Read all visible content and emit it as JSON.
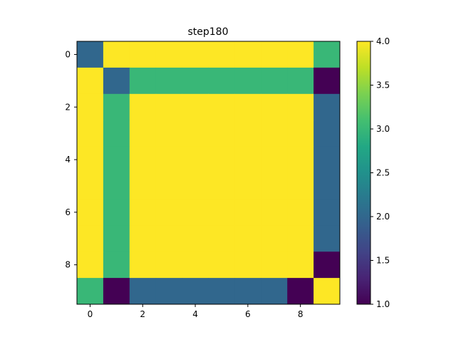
{
  "chart_data": {
    "type": "heatmap",
    "title": "step180",
    "xlabel": "",
    "ylabel": "",
    "x_ticks": [
      0,
      2,
      4,
      6,
      8
    ],
    "y_ticks": [
      0,
      2,
      4,
      6,
      8
    ],
    "colormap": "viridis",
    "colorbar": {
      "min": 1.0,
      "max": 4.0,
      "ticks": [
        "1.0",
        "1.5",
        "2.0",
        "2.5",
        "3.0",
        "3.5",
        "4.0"
      ]
    },
    "matrix": [
      [
        2,
        4,
        4,
        4,
        4,
        4,
        4,
        4,
        4,
        3
      ],
      [
        4,
        2,
        3,
        3,
        3,
        3,
        3,
        3,
        3,
        1
      ],
      [
        4,
        3,
        4,
        4,
        4,
        4,
        4,
        4,
        4,
        2
      ],
      [
        4,
        3,
        4,
        4,
        4,
        4,
        4,
        4,
        4,
        2
      ],
      [
        4,
        3,
        4,
        4,
        4,
        4,
        4,
        4,
        4,
        2
      ],
      [
        4,
        3,
        4,
        4,
        4,
        4,
        4,
        4,
        4,
        2
      ],
      [
        4,
        3,
        4,
        4,
        4,
        4,
        4,
        4,
        4,
        2
      ],
      [
        4,
        3,
        4,
        4,
        4,
        4,
        4,
        4,
        4,
        2
      ],
      [
        4,
        3,
        4,
        4,
        4,
        4,
        4,
        4,
        4,
        1
      ],
      [
        3,
        1,
        2,
        2,
        2,
        2,
        2,
        2,
        1,
        4
      ]
    ],
    "grid": false,
    "legend": "colorbar-right"
  }
}
